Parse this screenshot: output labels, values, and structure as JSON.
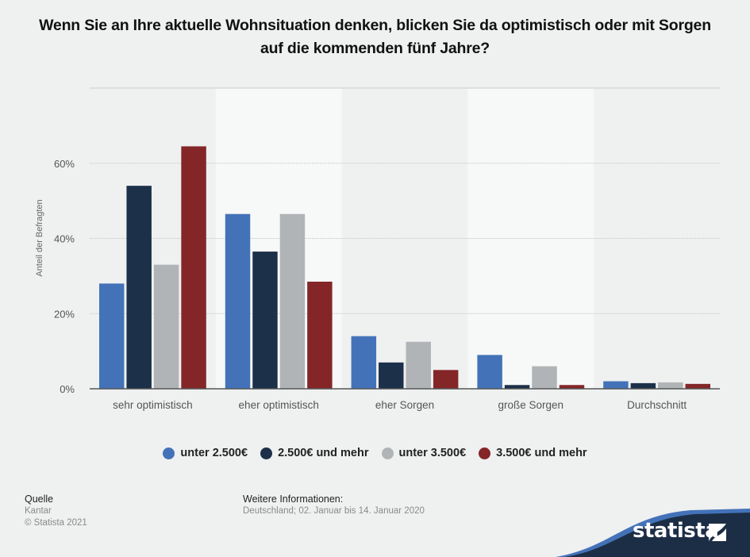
{
  "title": "Wenn Sie an Ihre aktuelle Wohnsituation denken, blicken Sie da optimistisch oder mit Sorgen auf die kommenden fünf Jahre?",
  "chart_data": {
    "type": "bar",
    "title": "Wenn Sie an Ihre aktuelle Wohnsituation denken, blicken Sie da optimistisch oder mit Sorgen auf die kommenden fünf Jahre?",
    "xlabel": "",
    "ylabel": "Anteil der Befragten",
    "ylim": [
      0,
      80
    ],
    "yticks": [
      0,
      20,
      40,
      60
    ],
    "ytick_labels": [
      "0%",
      "20%",
      "40%",
      "60%"
    ],
    "grid": true,
    "legend_position": "bottom",
    "categories": [
      "sehr optimistisch",
      "eher optimistisch",
      "eher Sorgen",
      "große Sorgen",
      "Durchschnitt"
    ],
    "series": [
      {
        "name": "unter 2.500€",
        "color": "#4372b8",
        "values": [
          28,
          46.5,
          14,
          9,
          2
        ]
      },
      {
        "name": "2.500€ und mehr",
        "color": "#1c3049",
        "values": [
          54,
          36.5,
          7,
          1,
          1.5
        ]
      },
      {
        "name": "unter 3.500€",
        "color": "#b1b4b7",
        "values": [
          33,
          46.5,
          12.5,
          6,
          1.7
        ]
      },
      {
        "name": "3.500€ und mehr",
        "color": "#842628",
        "values": [
          64.5,
          28.5,
          5,
          1,
          1.3
        ]
      }
    ]
  },
  "footer": {
    "source_heading": "Quelle",
    "source": "Kantar",
    "copyright": "© Statista 2021",
    "info_heading": "Weitere Informationen:",
    "info": "Deutschland; 02. Januar bis 14. Januar 2020"
  },
  "brand": {
    "name": "statista",
    "dark_color": "#1c2e45",
    "accent_color": "#4372b8"
  }
}
